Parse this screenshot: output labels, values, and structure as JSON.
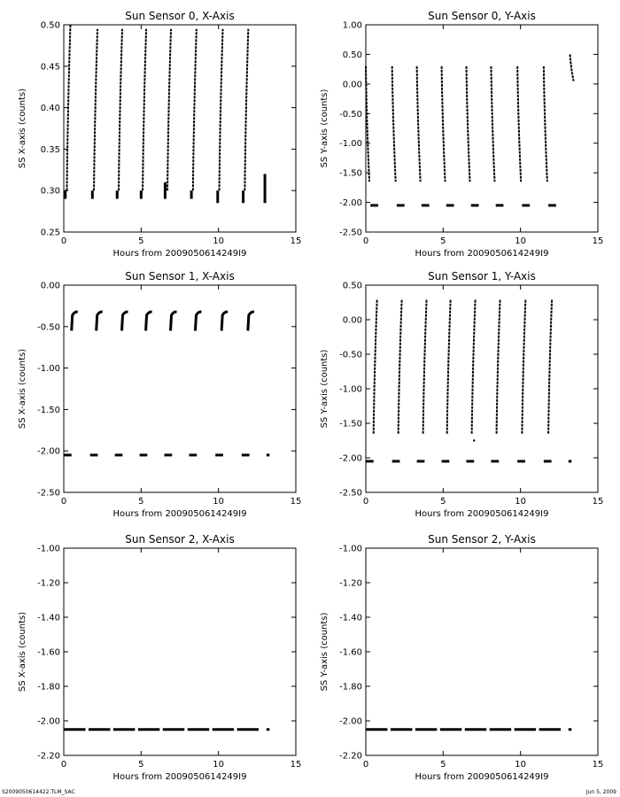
{
  "footer": {
    "left_text": "S2009050614422.TLM_SAC",
    "right_text": "Jun  5, 2009"
  },
  "colors": {
    "background": "#ffffff",
    "ink": "#000000"
  },
  "chart_data": [
    {
      "type": "scatter",
      "title": "Sun Sensor 0, X-Axis",
      "xlabel": "Hours from 2009050614249I9",
      "ylabel": "SS X-axis (counts)",
      "xlim": [
        0,
        15
      ],
      "ylim": [
        0.25,
        0.5
      ],
      "xticks": [
        0,
        5,
        10,
        15
      ],
      "yticks": [
        0.25,
        0.3,
        0.35,
        0.4,
        0.45,
        0.5
      ],
      "ytick_labels": [
        "0.25",
        "0.30",
        "0.35",
        "0.40",
        "0.45",
        "0.50"
      ],
      "series": [
        {
          "style": "vertical",
          "segments": [
            [
              0.1,
              0.29,
              0.3
            ],
            [
              1.85,
              0.29,
              0.3
            ],
            [
              3.45,
              0.29,
              0.3
            ],
            [
              5.0,
              0.29,
              0.3
            ],
            [
              6.55,
              0.29,
              0.31
            ],
            [
              8.25,
              0.29,
              0.3
            ],
            [
              9.95,
              0.285,
              0.3
            ],
            [
              11.6,
              0.285,
              0.3
            ],
            [
              13.0,
              0.285,
              0.32
            ]
          ]
        },
        {
          "style": "ramp",
          "segments": [
            [
              0.2,
              0.3,
              0.5
            ],
            [
              1.95,
              0.3,
              0.495
            ],
            [
              3.55,
              0.3,
              0.495
            ],
            [
              5.1,
              0.3,
              0.495
            ],
            [
              6.7,
              0.3,
              0.495
            ],
            [
              8.35,
              0.3,
              0.495
            ],
            [
              10.05,
              0.3,
              0.495
            ],
            [
              11.7,
              0.3,
              0.495
            ]
          ]
        }
      ]
    },
    {
      "type": "scatter",
      "title": "Sun Sensor 0, Y-Axis",
      "xlabel": "Hours from 2009050614249I9",
      "ylabel": "SS Y-axis (counts)",
      "xlim": [
        0,
        15
      ],
      "ylim": [
        -2.5,
        1.0
      ],
      "xticks": [
        0,
        5,
        10,
        15
      ],
      "yticks": [
        -2.5,
        -2.0,
        -1.5,
        -1.0,
        -0.5,
        0.0,
        0.5,
        1.0
      ],
      "ytick_labels": [
        "-2.50",
        "-2.00",
        "-1.50",
        "-1.00",
        "-0.50",
        "0.00",
        "0.50",
        "1.00"
      ],
      "series": [
        {
          "style": "ramp",
          "segments": [
            [
              0.0,
              0.3,
              -1.65
            ],
            [
              1.7,
              0.3,
              -1.65
            ],
            [
              3.3,
              0.3,
              -1.65
            ],
            [
              4.9,
              0.3,
              -1.65
            ],
            [
              6.5,
              0.3,
              -1.65
            ],
            [
              8.1,
              0.3,
              -1.65
            ],
            [
              9.8,
              0.3,
              -1.65
            ],
            [
              11.5,
              0.3,
              -1.65
            ],
            [
              13.2,
              0.5,
              0.05
            ]
          ]
        },
        {
          "style": "dash",
          "y": -2.05,
          "segments": [
            [
              0.3,
              0.8
            ],
            [
              2.0,
              2.5
            ],
            [
              3.6,
              4.1
            ],
            [
              5.2,
              5.7
            ],
            [
              6.8,
              7.3
            ],
            [
              8.4,
              8.9
            ],
            [
              10.1,
              10.6
            ],
            [
              11.8,
              12.3
            ]
          ]
        }
      ]
    },
    {
      "type": "scatter",
      "title": "Sun Sensor 1, X-Axis",
      "xlabel": "Hours from 2009050614249I9",
      "ylabel": "SS X-axis (counts)",
      "xlim": [
        0,
        15
      ],
      "ylim": [
        -2.5,
        0.0
      ],
      "xticks": [
        0,
        5,
        10,
        15
      ],
      "yticks": [
        -2.5,
        -2.0,
        -1.5,
        -1.0,
        -0.5,
        0.0
      ],
      "ytick_labels": [
        "-2.50",
        "-2.00",
        "-1.50",
        "-1.00",
        "-0.50",
        "0.00"
      ],
      "series": [
        {
          "style": "hook",
          "segments": [
            [
              0.5,
              -0.55,
              -0.32
            ],
            [
              2.1,
              -0.55,
              -0.32
            ],
            [
              3.75,
              -0.55,
              -0.32
            ],
            [
              5.3,
              -0.55,
              -0.32
            ],
            [
              6.9,
              -0.55,
              -0.32
            ],
            [
              8.5,
              -0.55,
              -0.32
            ],
            [
              10.2,
              -0.55,
              -0.32
            ],
            [
              11.9,
              -0.55,
              -0.32
            ]
          ]
        },
        {
          "style": "dash",
          "y": -2.05,
          "segments": [
            [
              0.0,
              0.5
            ],
            [
              1.7,
              2.2
            ],
            [
              3.3,
              3.8
            ],
            [
              4.9,
              5.4
            ],
            [
              6.5,
              7.0
            ],
            [
              8.1,
              8.6
            ],
            [
              9.8,
              10.3
            ],
            [
              11.5,
              12.0
            ],
            [
              13.1,
              13.3
            ]
          ]
        }
      ]
    },
    {
      "type": "scatter",
      "title": "Sun Sensor 1, Y-Axis",
      "xlabel": "Hours from 2009050614249I9",
      "ylabel": "SS Y-axis (counts)",
      "xlim": [
        0,
        15
      ],
      "ylim": [
        -2.5,
        0.5
      ],
      "xticks": [
        0,
        5,
        10,
        15
      ],
      "yticks": [
        -2.5,
        -2.0,
        -1.5,
        -1.0,
        -0.5,
        0.0,
        0.5
      ],
      "ytick_labels": [
        "-2.50",
        "-2.00",
        "-1.50",
        "-1.00",
        "-0.50",
        "0.00",
        "0.50"
      ],
      "series": [
        {
          "style": "ramp",
          "segments": [
            [
              0.5,
              -1.65,
              0.3
            ],
            [
              2.1,
              -1.65,
              0.3
            ],
            [
              3.7,
              -1.65,
              0.3
            ],
            [
              5.25,
              -1.65,
              0.3
            ],
            [
              6.85,
              -1.65,
              0.3
            ],
            [
              8.45,
              -1.65,
              0.3
            ],
            [
              10.1,
              -1.65,
              0.3
            ],
            [
              11.8,
              -1.65,
              0.3
            ]
          ]
        },
        {
          "style": "dash",
          "y": -2.05,
          "segments": [
            [
              0.0,
              0.5
            ],
            [
              1.7,
              2.2
            ],
            [
              3.3,
              3.8
            ],
            [
              4.9,
              5.4
            ],
            [
              6.5,
              7.0
            ],
            [
              8.1,
              8.6
            ],
            [
              9.8,
              10.3
            ],
            [
              11.5,
              12.0
            ],
            [
              13.1,
              13.3
            ]
          ]
        },
        {
          "style": "point",
          "x": 7.0,
          "y": -1.75
        }
      ]
    },
    {
      "type": "scatter",
      "title": "Sun Sensor 2, X-Axis",
      "xlabel": "Hours from 2009050614249I9",
      "ylabel": "SS X-axis (counts)",
      "xlim": [
        0,
        15
      ],
      "ylim": [
        -2.2,
        -1.0
      ],
      "xticks": [
        0,
        5,
        10,
        15
      ],
      "yticks": [
        -2.2,
        -2.0,
        -1.8,
        -1.6,
        -1.4,
        -1.2,
        -1.0
      ],
      "ytick_labels": [
        "-2.20",
        "-2.00",
        "-1.80",
        "-1.60",
        "-1.40",
        "-1.20",
        "-1.00"
      ],
      "series": [
        {
          "style": "dash",
          "y": -2.05,
          "segments": [
            [
              0.0,
              1.4
            ],
            [
              1.6,
              3.0
            ],
            [
              3.2,
              4.6
            ],
            [
              4.8,
              6.2
            ],
            [
              6.4,
              7.8
            ],
            [
              8.0,
              9.4
            ],
            [
              9.6,
              11.0
            ],
            [
              11.2,
              12.6
            ],
            [
              13.1,
              13.3
            ]
          ]
        }
      ]
    },
    {
      "type": "scatter",
      "title": "Sun Sensor 2, Y-Axis",
      "xlabel": "Hours from 2009050614249I9",
      "ylabel": "SS Y-axis (counts)",
      "xlim": [
        0,
        15
      ],
      "ylim": [
        -2.2,
        -1.0
      ],
      "xticks": [
        0,
        5,
        10,
        15
      ],
      "yticks": [
        -2.2,
        -2.0,
        -1.8,
        -1.6,
        -1.4,
        -1.2,
        -1.0
      ],
      "ytick_labels": [
        "-2.20",
        "-2.00",
        "-1.80",
        "-1.60",
        "-1.40",
        "-1.20",
        "-1.00"
      ],
      "series": [
        {
          "style": "dash",
          "y": -2.05,
          "segments": [
            [
              0.0,
              1.4
            ],
            [
              1.6,
              3.0
            ],
            [
              3.2,
              4.6
            ],
            [
              4.8,
              6.2
            ],
            [
              6.4,
              7.8
            ],
            [
              8.0,
              9.4
            ],
            [
              9.6,
              11.0
            ],
            [
              11.2,
              12.6
            ],
            [
              13.1,
              13.3
            ]
          ]
        }
      ]
    }
  ]
}
